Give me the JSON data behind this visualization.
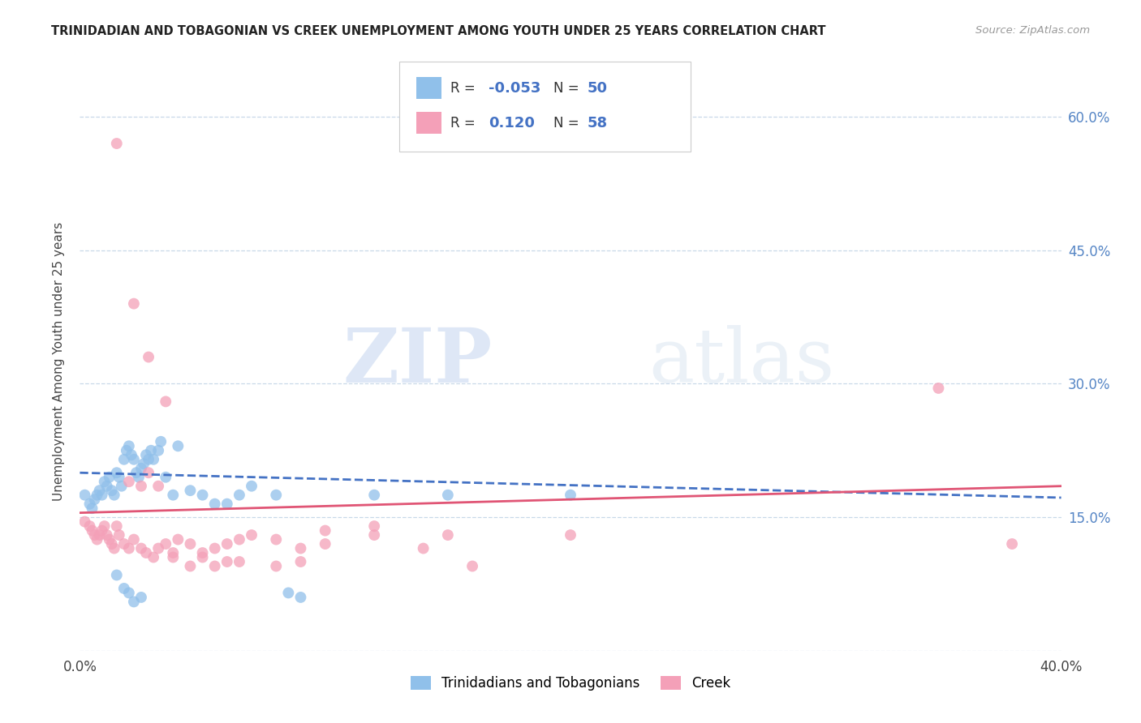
{
  "title": "TRINIDADIAN AND TOBAGONIAN VS CREEK UNEMPLOYMENT AMONG YOUTH UNDER 25 YEARS CORRELATION CHART",
  "source": "Source: ZipAtlas.com",
  "ylabel": "Unemployment Among Youth under 25 years",
  "xmin": 0.0,
  "xmax": 0.4,
  "ymin": 0.0,
  "ymax": 0.65,
  "yticks": [
    0.0,
    0.15,
    0.3,
    0.45,
    0.6
  ],
  "ytick_labels": [
    "",
    "15.0%",
    "30.0%",
    "45.0%",
    "60.0%"
  ],
  "xticks": [
    0.0,
    0.1,
    0.2,
    0.3,
    0.4
  ],
  "xtick_labels": [
    "0.0%",
    "",
    "",
    "",
    "40.0%"
  ],
  "blue_R": "-0.053",
  "blue_N": "50",
  "pink_R": "0.120",
  "pink_N": "58",
  "blue_color": "#90c0ea",
  "pink_color": "#f4a0b8",
  "trend_blue_color": "#4472c4",
  "trend_pink_color": "#e05575",
  "watermark_zip": "ZIP",
  "watermark_atlas": "atlas",
  "blue_scatter_x": [
    0.002,
    0.004,
    0.005,
    0.006,
    0.007,
    0.008,
    0.009,
    0.01,
    0.011,
    0.012,
    0.013,
    0.014,
    0.015,
    0.016,
    0.017,
    0.018,
    0.019,
    0.02,
    0.021,
    0.022,
    0.023,
    0.024,
    0.025,
    0.026,
    0.027,
    0.028,
    0.029,
    0.03,
    0.032,
    0.033,
    0.035,
    0.038,
    0.04,
    0.045,
    0.05,
    0.055,
    0.06,
    0.065,
    0.07,
    0.08,
    0.015,
    0.02,
    0.025,
    0.018,
    0.022,
    0.12,
    0.15,
    0.2,
    0.09,
    0.085
  ],
  "blue_scatter_y": [
    0.175,
    0.165,
    0.16,
    0.17,
    0.175,
    0.18,
    0.175,
    0.19,
    0.185,
    0.195,
    0.18,
    0.175,
    0.2,
    0.195,
    0.185,
    0.215,
    0.225,
    0.23,
    0.22,
    0.215,
    0.2,
    0.195,
    0.205,
    0.21,
    0.22,
    0.215,
    0.225,
    0.215,
    0.225,
    0.235,
    0.195,
    0.175,
    0.23,
    0.18,
    0.175,
    0.165,
    0.165,
    0.175,
    0.185,
    0.175,
    0.085,
    0.065,
    0.06,
    0.07,
    0.055,
    0.175,
    0.175,
    0.175,
    0.06,
    0.065
  ],
  "pink_scatter_x": [
    0.002,
    0.004,
    0.005,
    0.006,
    0.007,
    0.008,
    0.009,
    0.01,
    0.011,
    0.012,
    0.013,
    0.014,
    0.015,
    0.016,
    0.018,
    0.02,
    0.022,
    0.025,
    0.027,
    0.03,
    0.032,
    0.035,
    0.038,
    0.04,
    0.045,
    0.05,
    0.055,
    0.06,
    0.065,
    0.07,
    0.08,
    0.09,
    0.1,
    0.12,
    0.15,
    0.2,
    0.02,
    0.025,
    0.028,
    0.032,
    0.038,
    0.045,
    0.055,
    0.065,
    0.09,
    0.12,
    0.35,
    0.38,
    0.015,
    0.022,
    0.028,
    0.035,
    0.05,
    0.06,
    0.08,
    0.1,
    0.14,
    0.16
  ],
  "pink_scatter_y": [
    0.145,
    0.14,
    0.135,
    0.13,
    0.125,
    0.13,
    0.135,
    0.14,
    0.13,
    0.125,
    0.12,
    0.115,
    0.14,
    0.13,
    0.12,
    0.115,
    0.125,
    0.115,
    0.11,
    0.105,
    0.115,
    0.12,
    0.11,
    0.125,
    0.12,
    0.11,
    0.115,
    0.12,
    0.125,
    0.13,
    0.125,
    0.115,
    0.12,
    0.13,
    0.13,
    0.13,
    0.19,
    0.185,
    0.2,
    0.185,
    0.105,
    0.095,
    0.095,
    0.1,
    0.1,
    0.14,
    0.295,
    0.12,
    0.57,
    0.39,
    0.33,
    0.28,
    0.105,
    0.1,
    0.095,
    0.135,
    0.115,
    0.095
  ],
  "trend_blue_x0": 0.0,
  "trend_blue_x1": 0.4,
  "trend_blue_y0": 0.2,
  "trend_blue_y1": 0.172,
  "trend_pink_x0": 0.0,
  "trend_pink_x1": 0.4,
  "trend_pink_y0": 0.155,
  "trend_pink_y1": 0.185
}
